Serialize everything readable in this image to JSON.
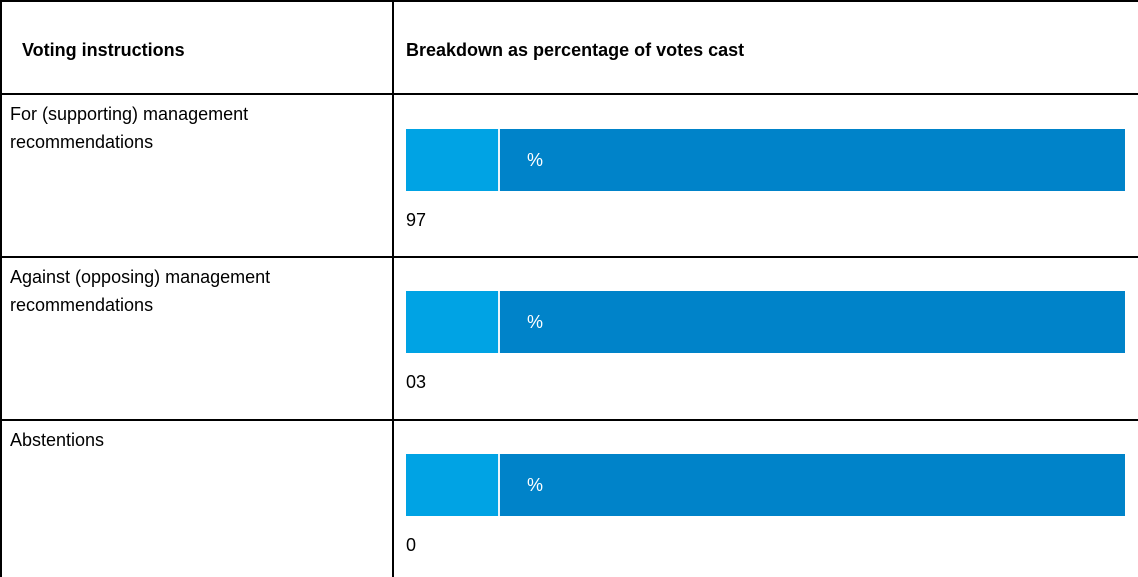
{
  "headers": {
    "col1": "Voting instructions",
    "col2": "Breakdown as percentage of votes cast"
  },
  "rows": [
    {
      "label_line1": "For (supporting) management",
      "label_line2": "recommendations",
      "bar_label": "%",
      "value": "97"
    },
    {
      "label_line1": "Against (opposing) management",
      "label_line2": "recommendations",
      "bar_label": "%",
      "value": "03"
    },
    {
      "label_line1": "Abstentions",
      "label_line2": "",
      "bar_label": "%",
      "value": "0"
    }
  ],
  "colors": {
    "bar_primary": "#0083c9",
    "bar_light": "#00a3e4"
  }
}
